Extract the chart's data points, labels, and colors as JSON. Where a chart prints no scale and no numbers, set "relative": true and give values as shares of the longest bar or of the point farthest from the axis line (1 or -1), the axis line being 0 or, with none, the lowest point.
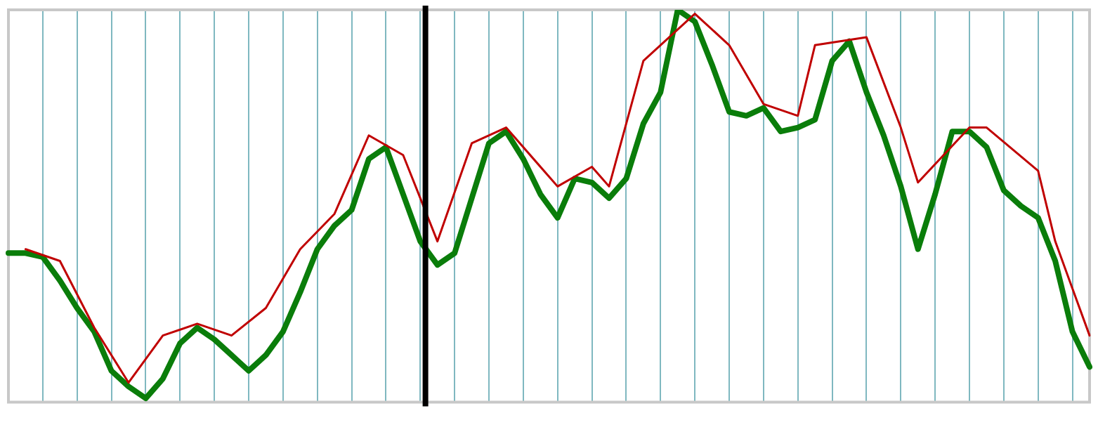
{
  "chart_data": {
    "type": "line",
    "relative": true,
    "grid": "x",
    "legend": false,
    "marker": "none",
    "categories": [
      null,
      null,
      null,
      null,
      null,
      null,
      null,
      null,
      null,
      null,
      null,
      null,
      null,
      null,
      null,
      null,
      null,
      null,
      null,
      null,
      null,
      null,
      null,
      null,
      null,
      null,
      null,
      null,
      null,
      null,
      null,
      null,
      null,
      null,
      null,
      null,
      null,
      null,
      null,
      null,
      null,
      null,
      null,
      null,
      null,
      null,
      null,
      null,
      null,
      null,
      null,
      null,
      null,
      null,
      null,
      null,
      null,
      null,
      null,
      null,
      null,
      null,
      null,
      null
    ],
    "series": [
      {
        "color": "#0a7d0a",
        "values": [
          0.38,
          0.38,
          0.37,
          0.31,
          0.24,
          0.18,
          0.08,
          0.04,
          0.01,
          0.06,
          0.15,
          0.19,
          0.16,
          0.12,
          0.08,
          0.12,
          0.18,
          0.28,
          0.39,
          0.45,
          0.49,
          0.62,
          0.65,
          0.53,
          0.41,
          0.35,
          0.38,
          0.52,
          0.66,
          0.69,
          0.62,
          0.53,
          0.47,
          0.57,
          0.56,
          0.52,
          0.57,
          0.71,
          0.79,
          1.0,
          0.97,
          0.86,
          0.74,
          0.73,
          0.75,
          0.69,
          0.7,
          0.72,
          0.87,
          0.92,
          0.79,
          0.68,
          0.55,
          0.39,
          0.53,
          0.69,
          0.69,
          0.65,
          0.54,
          0.5,
          0.47,
          0.36,
          0.18,
          0.09
        ]
      },
      {
        "color": "#c00000",
        "values": [
          null,
          0.39,
          null,
          0.36,
          null,
          0.19,
          null,
          0.05,
          null,
          0.17,
          null,
          0.2,
          null,
          0.17,
          null,
          0.24,
          null,
          0.39,
          null,
          0.48,
          null,
          0.68,
          null,
          0.63,
          null,
          0.41,
          null,
          0.66,
          null,
          0.7,
          null,
          null,
          0.55,
          null,
          0.6,
          0.55,
          null,
          0.87,
          null,
          null,
          0.99,
          null,
          0.91,
          null,
          0.76,
          null,
          0.73,
          0.91,
          null,
          null,
          0.93,
          null,
          0.7,
          0.56,
          null,
          null,
          0.7,
          0.7,
          null,
          null,
          0.59,
          0.41,
          null,
          0.17
        ]
      }
    ]
  }
}
